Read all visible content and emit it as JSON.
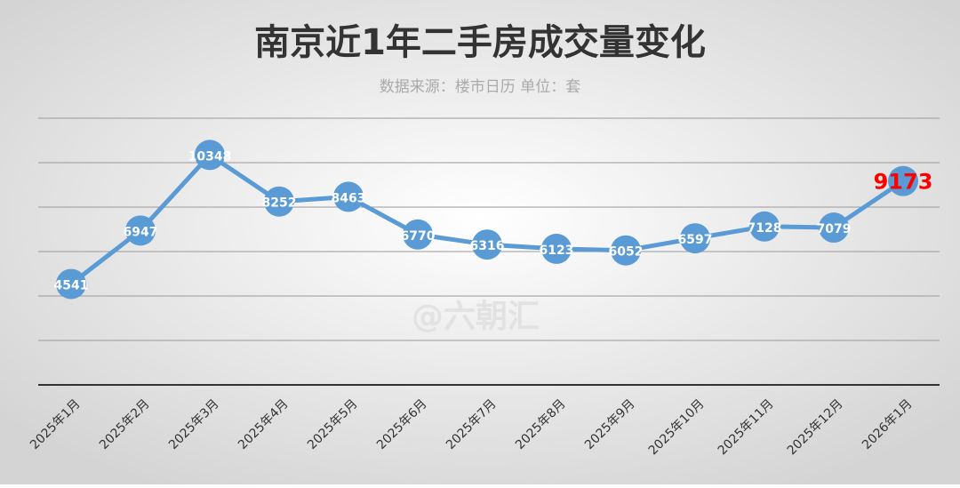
{
  "chart_data": {
    "type": "line",
    "title": "南京近1年二手房成交量变化",
    "subtitle": "数据来源：楼市日历 单位：套",
    "watermark": "@六朝汇",
    "categories": [
      "2025年1月",
      "2025年2月",
      "2025年3月",
      "2025年4月",
      "2025年5月",
      "2025年6月",
      "2025年7月",
      "2025年8月",
      "2025年9月",
      "2025年10月",
      "2025年11月",
      "2025年12月",
      "2026年1月"
    ],
    "series": [
      {
        "name": "成交量",
        "color": "#5b9bd5",
        "values": [
          4541,
          6947,
          10348,
          8252,
          8463,
          6770,
          6316,
          6123,
          6052,
          6597,
          7128,
          7079,
          9173
        ]
      }
    ],
    "highlight": {
      "index": 12,
      "color": "#ff0000"
    },
    "ylim": [
      0,
      12000
    ],
    "yticks": [
      0,
      2000,
      4000,
      6000,
      8000,
      10000,
      12000
    ],
    "grid": true
  }
}
